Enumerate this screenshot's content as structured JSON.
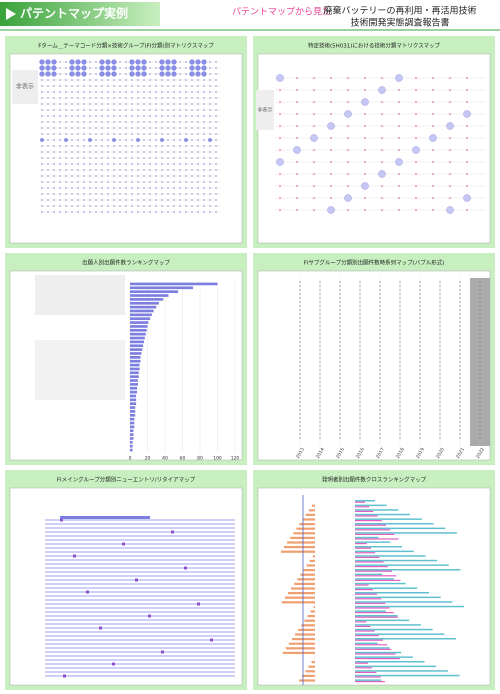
{
  "header": {
    "badge": "パテントマップ実例",
    "lead": "パテントマップから見た",
    "title_lines": [
      "廃棄バッテリーの再利用・再活用技術",
      "技術開発実態調査報告書"
    ]
  },
  "panels": [
    {
      "title": "Fターム＿テーマコード分類×技術グループ(FI分類)別マトリクスマップ",
      "note": "非表示"
    },
    {
      "title": "特定技術(5H031)における技術分類マトリクスマップ",
      "note": "非表示"
    },
    {
      "title": "出願人別出願件数ランキングマップ"
    },
    {
      "title": "FIサブグループ分類別出願件数時系列マップ(バブル形式)"
    },
    {
      "title": "FIメイングループ分類別ニューエントリ/リタイアマップ"
    },
    {
      "title": "発明者別出願件数クロスランキングマップ"
    }
  ],
  "ranking": {
    "values": [
      100,
      72,
      55,
      44,
      38,
      33,
      30,
      27,
      25,
      23,
      21,
      20,
      19,
      18,
      17,
      16,
      15,
      14,
      13,
      12,
      12,
      11,
      11,
      10,
      10,
      9,
      9,
      8,
      8,
      7,
      7,
      7,
      6,
      6,
      6,
      5,
      5,
      5,
      4,
      4,
      4,
      3,
      3,
      3
    ],
    "xlim": [
      0,
      120
    ],
    "xticks": [
      0,
      20,
      40,
      60,
      80,
      100,
      120
    ]
  },
  "timeline": {
    "years": [
      "2013",
      "2014",
      "2015",
      "2016",
      "2017",
      "2018",
      "2019",
      "2020",
      "2021",
      "2022"
    ]
  }
}
